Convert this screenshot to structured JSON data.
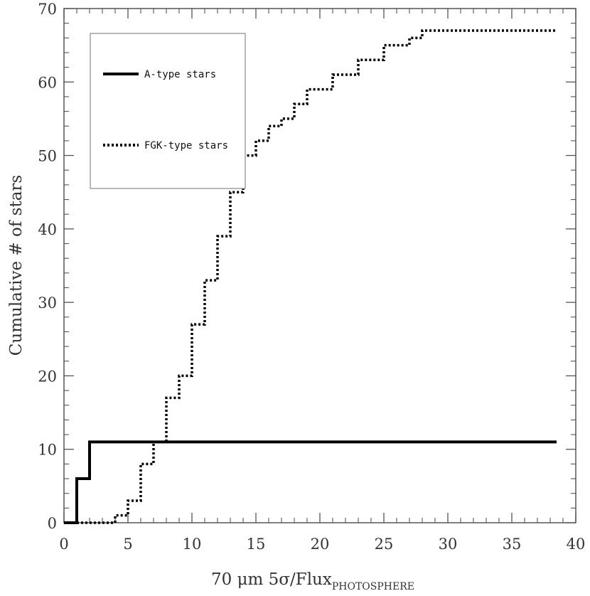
{
  "chart_data": {
    "type": "line",
    "xlabel": "70 μm 5σ/Flux",
    "xlabel_subscript": "PHOTOSPHERE",
    "ylabel": "Cumulative # of stars",
    "xlim": [
      0,
      40
    ],
    "ylim": [
      0,
      70
    ],
    "xticks": [
      0,
      5,
      10,
      15,
      20,
      25,
      30,
      35,
      40
    ],
    "yticks": [
      0,
      10,
      20,
      30,
      40,
      50,
      60,
      70
    ],
    "grid": false,
    "legend_position": "top-left",
    "series": [
      {
        "name": "A-type stars",
        "style": "solid",
        "color": "#000000",
        "steps": [
          [
            0,
            0
          ],
          [
            1,
            6
          ],
          [
            2,
            11
          ],
          [
            38.5,
            11
          ]
        ]
      },
      {
        "name": "FGK-type stars",
        "style": "dotted",
        "color": "#000000",
        "steps": [
          [
            0,
            0
          ],
          [
            4,
            1
          ],
          [
            5,
            3
          ],
          [
            6,
            8
          ],
          [
            7,
            11
          ],
          [
            8,
            17
          ],
          [
            9,
            20
          ],
          [
            10,
            27
          ],
          [
            11,
            33
          ],
          [
            12,
            39
          ],
          [
            13,
            45
          ],
          [
            14,
            50
          ],
          [
            15,
            52
          ],
          [
            16,
            54
          ],
          [
            17,
            55
          ],
          [
            18,
            57
          ],
          [
            19,
            59
          ],
          [
            21,
            61
          ],
          [
            23,
            63
          ],
          [
            25,
            65
          ],
          [
            27,
            66
          ],
          [
            28,
            67
          ],
          [
            38.5,
            67
          ]
        ]
      }
    ]
  }
}
